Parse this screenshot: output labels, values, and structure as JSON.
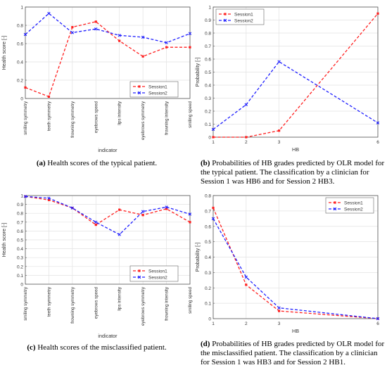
{
  "chart_data": [
    {
      "id": "a",
      "type": "line",
      "xlabel": "indicator",
      "ylabel": "Health score [-]",
      "categories": [
        "smiling symmetry",
        "teeth symmetry",
        "frowning symmetry",
        "eyebrows speed",
        "lips intensity",
        "eyebrows symmetry",
        "frowning intensity",
        "smiling speed"
      ],
      "ylim": [
        0,
        1
      ],
      "yticks": [
        "0",
        "0.2",
        "0.4",
        "0.6",
        "0.8",
        "1"
      ],
      "grid": true,
      "legend_position": "bottom-right",
      "series": [
        {
          "name": "Session1",
          "color": "#ff2020",
          "marker": "square",
          "values": [
            0.12,
            0.02,
            0.78,
            0.84,
            0.63,
            0.46,
            0.56,
            0.56
          ]
        },
        {
          "name": "Session2",
          "color": "#2020ff",
          "marker": "x",
          "values": [
            0.7,
            0.93,
            0.72,
            0.76,
            0.69,
            0.67,
            0.61,
            0.71
          ]
        }
      ]
    },
    {
      "id": "b",
      "type": "line",
      "xlabel": "HB",
      "ylabel": "Probability [-]",
      "x": [
        1,
        2,
        3,
        6
      ],
      "xticks": [
        "1",
        "2",
        "3",
        "6"
      ],
      "ylim": [
        0,
        1
      ],
      "yticks": [
        "0",
        "0.1",
        "0.2",
        "0.3",
        "0.4",
        "0.5",
        "0.6",
        "0.7",
        "0.8",
        "0.9",
        "1"
      ],
      "grid": true,
      "legend_position": "top-left",
      "series": [
        {
          "name": "Session1",
          "color": "#ff2020",
          "marker": "square",
          "values": [
            0.0,
            0.0,
            0.05,
            0.95
          ]
        },
        {
          "name": "Session2",
          "color": "#2020ff",
          "marker": "x",
          "values": [
            0.06,
            0.25,
            0.58,
            0.11
          ]
        }
      ]
    },
    {
      "id": "c",
      "type": "line",
      "xlabel": "indicator",
      "ylabel": "Health score [-]",
      "categories": [
        "smiling symmetry",
        "teeth symmetry",
        "frowning symmetry",
        "eyebrows speed",
        "lips intensity",
        "eyebrows symmetry",
        "frowning intensity",
        "smiling speed"
      ],
      "ylim": [
        0,
        1
      ],
      "yticks": [
        "0",
        "0.1",
        "0.2",
        "0.3",
        "0.4",
        "0.5",
        "0.6",
        "0.7",
        "0.8",
        "0.9",
        "1"
      ],
      "grid": true,
      "legend_position": "bottom-right",
      "series": [
        {
          "name": "Session1",
          "color": "#ff2020",
          "marker": "square",
          "values": [
            0.99,
            0.95,
            0.86,
            0.67,
            0.84,
            0.78,
            0.85,
            0.7
          ]
        },
        {
          "name": "Session2",
          "color": "#2020ff",
          "marker": "x",
          "values": [
            0.99,
            0.97,
            0.86,
            0.7,
            0.56,
            0.82,
            0.87,
            0.79
          ]
        }
      ]
    },
    {
      "id": "d",
      "type": "line",
      "xlabel": "HB",
      "ylabel": "Probability [-]",
      "x": [
        1,
        2,
        3,
        6
      ],
      "xticks": [
        "1",
        "2",
        "3",
        "6"
      ],
      "ylim": [
        0,
        0.8
      ],
      "yticks": [
        "0",
        "0.1",
        "0.2",
        "0.3",
        "0.4",
        "0.5",
        "0.6",
        "0.7",
        "0.8"
      ],
      "grid": true,
      "legend_position": "top-right",
      "series": [
        {
          "name": "Session1",
          "color": "#ff2020",
          "marker": "square",
          "values": [
            0.72,
            0.22,
            0.05,
            0.0
          ]
        },
        {
          "name": "Session2",
          "color": "#2020ff",
          "marker": "x",
          "values": [
            0.65,
            0.27,
            0.07,
            0.0
          ]
        }
      ]
    }
  ],
  "captions": {
    "a": {
      "tag": "(a)",
      "text": " Health scores of the typical patient."
    },
    "b": {
      "tag": "(b)",
      "text": " Probabilities of HB grades predicted by OLR model for the typical patient. The classification by a clinician for Session 1 was HB6 and for Session 2 HB3."
    },
    "c": {
      "tag": "(c)",
      "text": " Health scores of the misclassified patient."
    },
    "d": {
      "tag": "(d)",
      "text": " Probabilities of HB grades predicted by OLR model for the misclassified patient. The classification by a clinician for Session 1 was HB3 and for Session 2 HB1."
    }
  }
}
